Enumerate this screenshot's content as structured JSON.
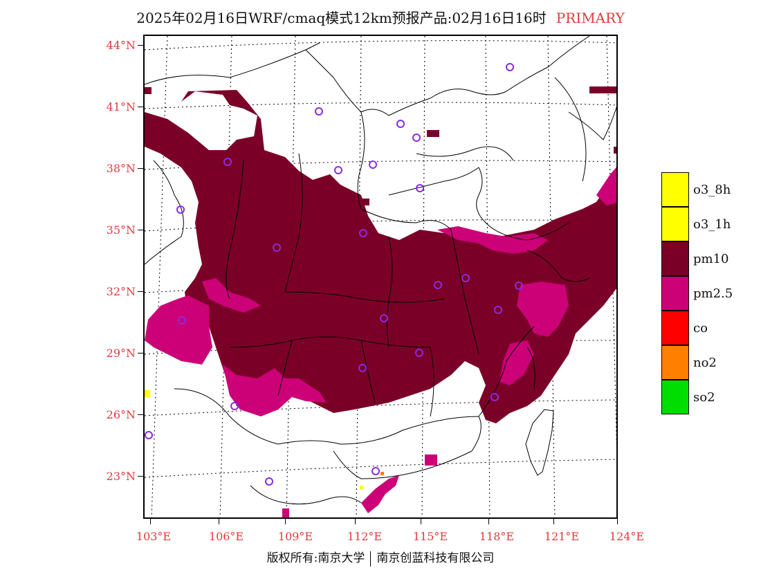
{
  "title": {
    "main": "2025年02月16日WRF/cmaq模式12km预报产品:02月16日16时",
    "tag": "PRIMARY"
  },
  "axes": {
    "lat_labels": [
      "44°N",
      "41°N",
      "38°N",
      "35°N",
      "32°N",
      "29°N",
      "26°N",
      "23°N"
    ],
    "lon_labels": [
      "103°E",
      "106°E",
      "109°E",
      "112°E",
      "115°E",
      "118°E",
      "121°E",
      "124°E"
    ]
  },
  "legend": {
    "items": [
      {
        "label": "o3_8h",
        "color": "#ffff00"
      },
      {
        "label": "o3_1h",
        "color": "#ffff00"
      },
      {
        "label": "pm10",
        "color": "#7b0028"
      },
      {
        "label": "pm2.5",
        "color": "#cc0077"
      },
      {
        "label": "co",
        "color": "#ff0000"
      },
      {
        "label": "no2",
        "color": "#ff7f00"
      },
      {
        "label": "so2",
        "color": "#00dd00"
      }
    ]
  },
  "map": {
    "primary_pollutant_colors": {
      "pm10": "#7b0028",
      "pm25": "#cc0077",
      "o3": "#ffff00",
      "no2": "#ff7f00"
    },
    "station_marker_color": "#8a2be2"
  },
  "footer": {
    "left": "版权所有:南京大学",
    "right": "南京创蓝科技有限公司"
  }
}
